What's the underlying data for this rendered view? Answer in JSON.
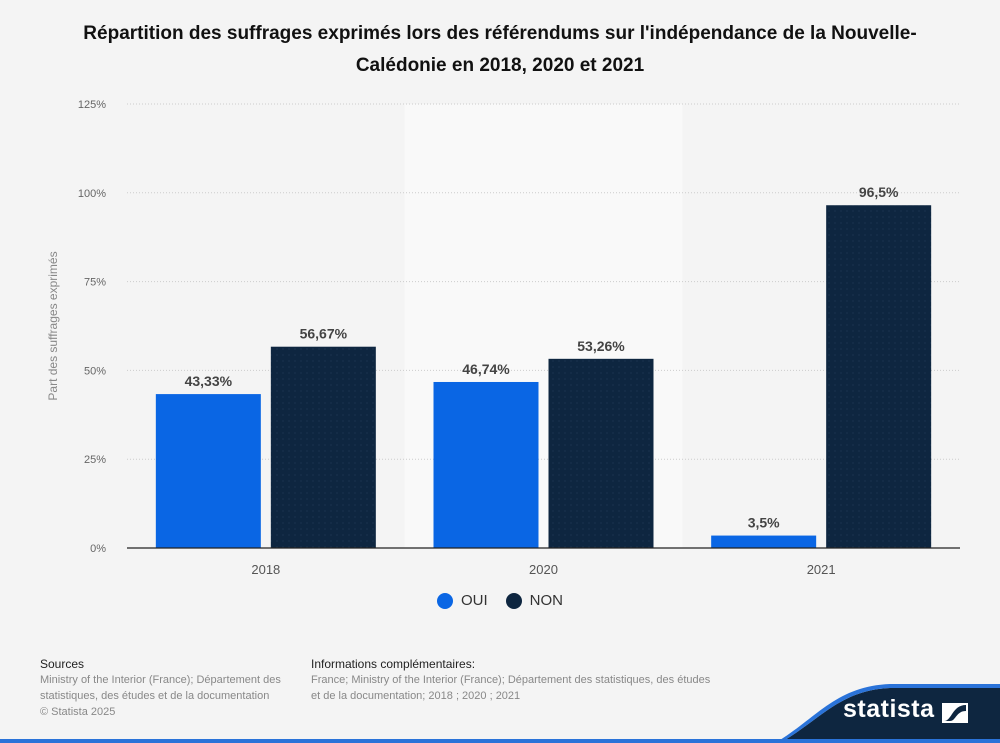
{
  "title": "Répartition des suffrages exprimés lors des référendums sur l'indépendance de la Nouvelle-Calédonie en 2018, 2020 et 2021",
  "chart_data": {
    "type": "bar",
    "title": "Répartition des suffrages exprimés lors des référendums sur l'indépendance de la Nouvelle-Calédonie en 2018, 2020 et 2021",
    "xlabel": "",
    "ylabel": "Part des suffrages exprimés",
    "categories": [
      "2018",
      "2020",
      "2021"
    ],
    "series": [
      {
        "name": "OUI",
        "color": "#0a66e4",
        "values": [
          43.33,
          46.74,
          3.5
        ],
        "labels": [
          "43,33%",
          "46,74%",
          "3,5%"
        ]
      },
      {
        "name": "NON",
        "color": "#0e2640",
        "values": [
          56.67,
          53.26,
          96.5
        ],
        "labels": [
          "56,67%",
          "53,26%",
          "96,5%"
        ]
      }
    ],
    "ylim": [
      0,
      125
    ],
    "yticks": [
      0,
      25,
      50,
      75,
      100,
      125
    ],
    "ytick_labels": [
      "0%",
      "25%",
      "50%",
      "75%",
      "100%",
      "125%"
    ],
    "grid": true,
    "highlighted_category": "2020",
    "legend_position": "bottom"
  },
  "legend": [
    {
      "label": "OUI",
      "color": "#0a66e4"
    },
    {
      "label": "NON",
      "color": "#0e2640"
    }
  ],
  "footer": {
    "sources_heading": "Sources",
    "sources_text": "Ministry of the Interior (France); Département des statistiques, des études et de la documentation",
    "copyright": "© Statista 2025",
    "info_heading": "Informations complémentaires:",
    "info_text": "France; Ministry of the Interior (France); Département des statistiques, des études et de la documentation; 2018 ; 2020 ; 2021"
  },
  "brand": {
    "name": "statista"
  }
}
